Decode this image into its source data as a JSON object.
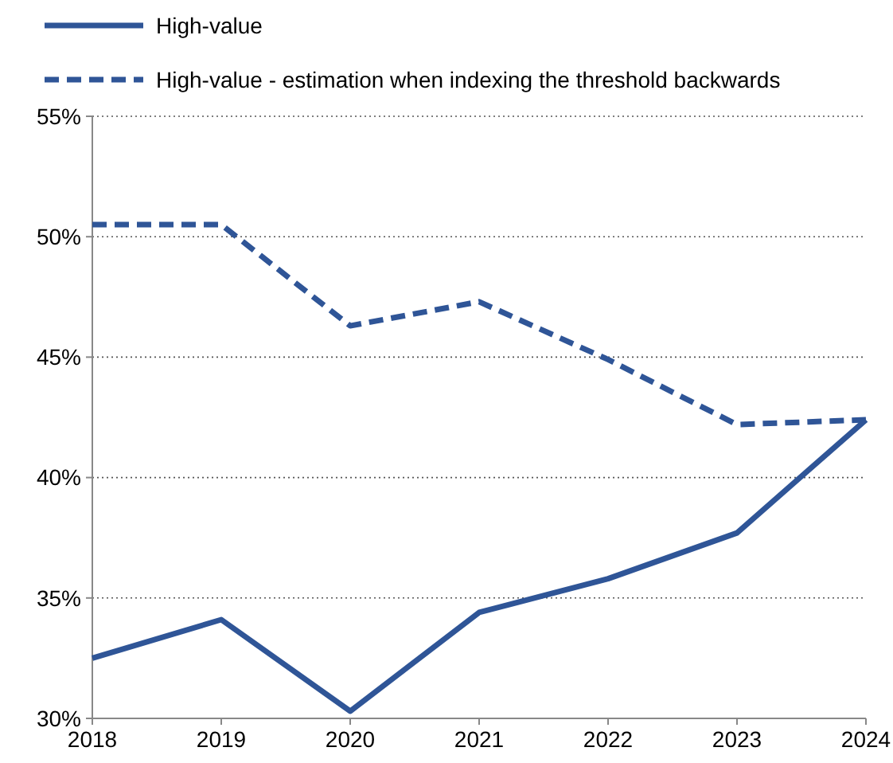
{
  "chart_data": {
    "type": "line",
    "x": [
      2018,
      2019,
      2020,
      2021,
      2022,
      2023,
      2024
    ],
    "series": [
      {
        "name": "High-value",
        "color": "#2f5597",
        "values": [
          32.5,
          34.1,
          30.3,
          34.4,
          35.8,
          37.7,
          42.4
        ],
        "line_style": "solid"
      },
      {
        "name": "High-value - estimation when indexing the threshold backwards",
        "color": "#2f5597",
        "values": [
          50.5,
          50.5,
          46.3,
          47.3,
          44.9,
          42.2,
          42.4
        ],
        "line_style": "dashed"
      }
    ],
    "xlim": [
      2018,
      2024
    ],
    "xticks": [
      2018,
      2019,
      2020,
      2021,
      2022,
      2023,
      2024
    ],
    "ylim": [
      30,
      55
    ],
    "yticks": [
      {
        "value": 30,
        "label": "30%"
      },
      {
        "value": 35,
        "label": "35%"
      },
      {
        "value": 40,
        "label": "40%"
      },
      {
        "value": 45,
        "label": "45%"
      },
      {
        "value": 50,
        "label": "50%"
      },
      {
        "value": 55,
        "label": "55%"
      }
    ],
    "grid": "y",
    "legend": "top left",
    "marker": "none"
  }
}
